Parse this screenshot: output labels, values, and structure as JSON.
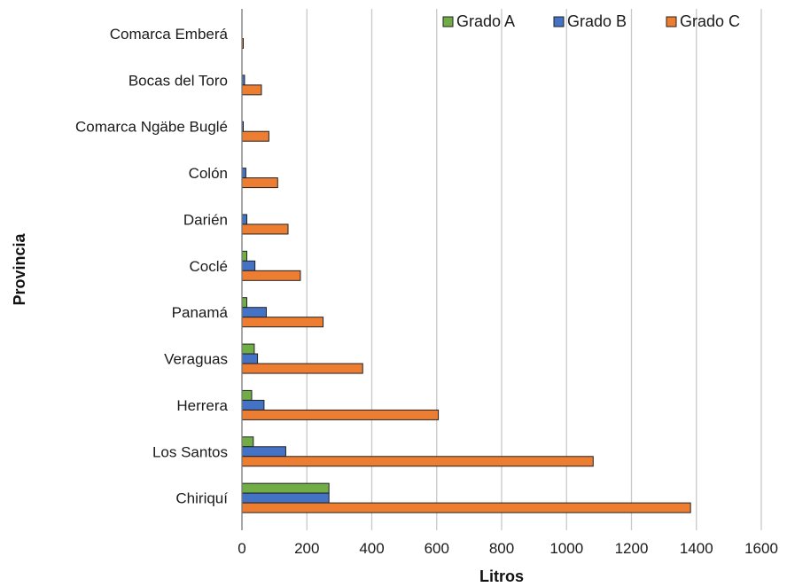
{
  "chart_data": {
    "type": "bar",
    "orientation": "horizontal",
    "title": "",
    "xlabel": "Litros",
    "ylabel": "Provincia",
    "xlim": [
      0,
      1600
    ],
    "xticks": [
      0,
      200,
      400,
      600,
      800,
      1000,
      1200,
      1400,
      1600
    ],
    "grid": "vertical",
    "legend_position": "top-right",
    "categories": [
      "Comarca Emberá",
      "Bocas del Toro",
      "Comarca Ngäbe Buglé",
      "Colón",
      "Darién",
      "Coclé",
      "Panamá",
      "Veraguas",
      "Herrera",
      "Los Santos",
      "Chiriquí"
    ],
    "series": [
      {
        "name": "Grado A",
        "color": "#70ad47",
        "values": [
          0,
          0,
          0,
          0,
          0,
          15,
          15,
          38,
          30,
          35,
          268
        ]
      },
      {
        "name": "Grado B",
        "color": "#4472c4",
        "values": [
          0,
          8,
          3,
          12,
          15,
          40,
          75,
          48,
          68,
          135,
          268
        ]
      },
      {
        "name": "Grado C",
        "color": "#ed7d31",
        "values": [
          2,
          60,
          83,
          110,
          142,
          180,
          250,
          372,
          605,
          1082,
          1382
        ]
      }
    ]
  }
}
